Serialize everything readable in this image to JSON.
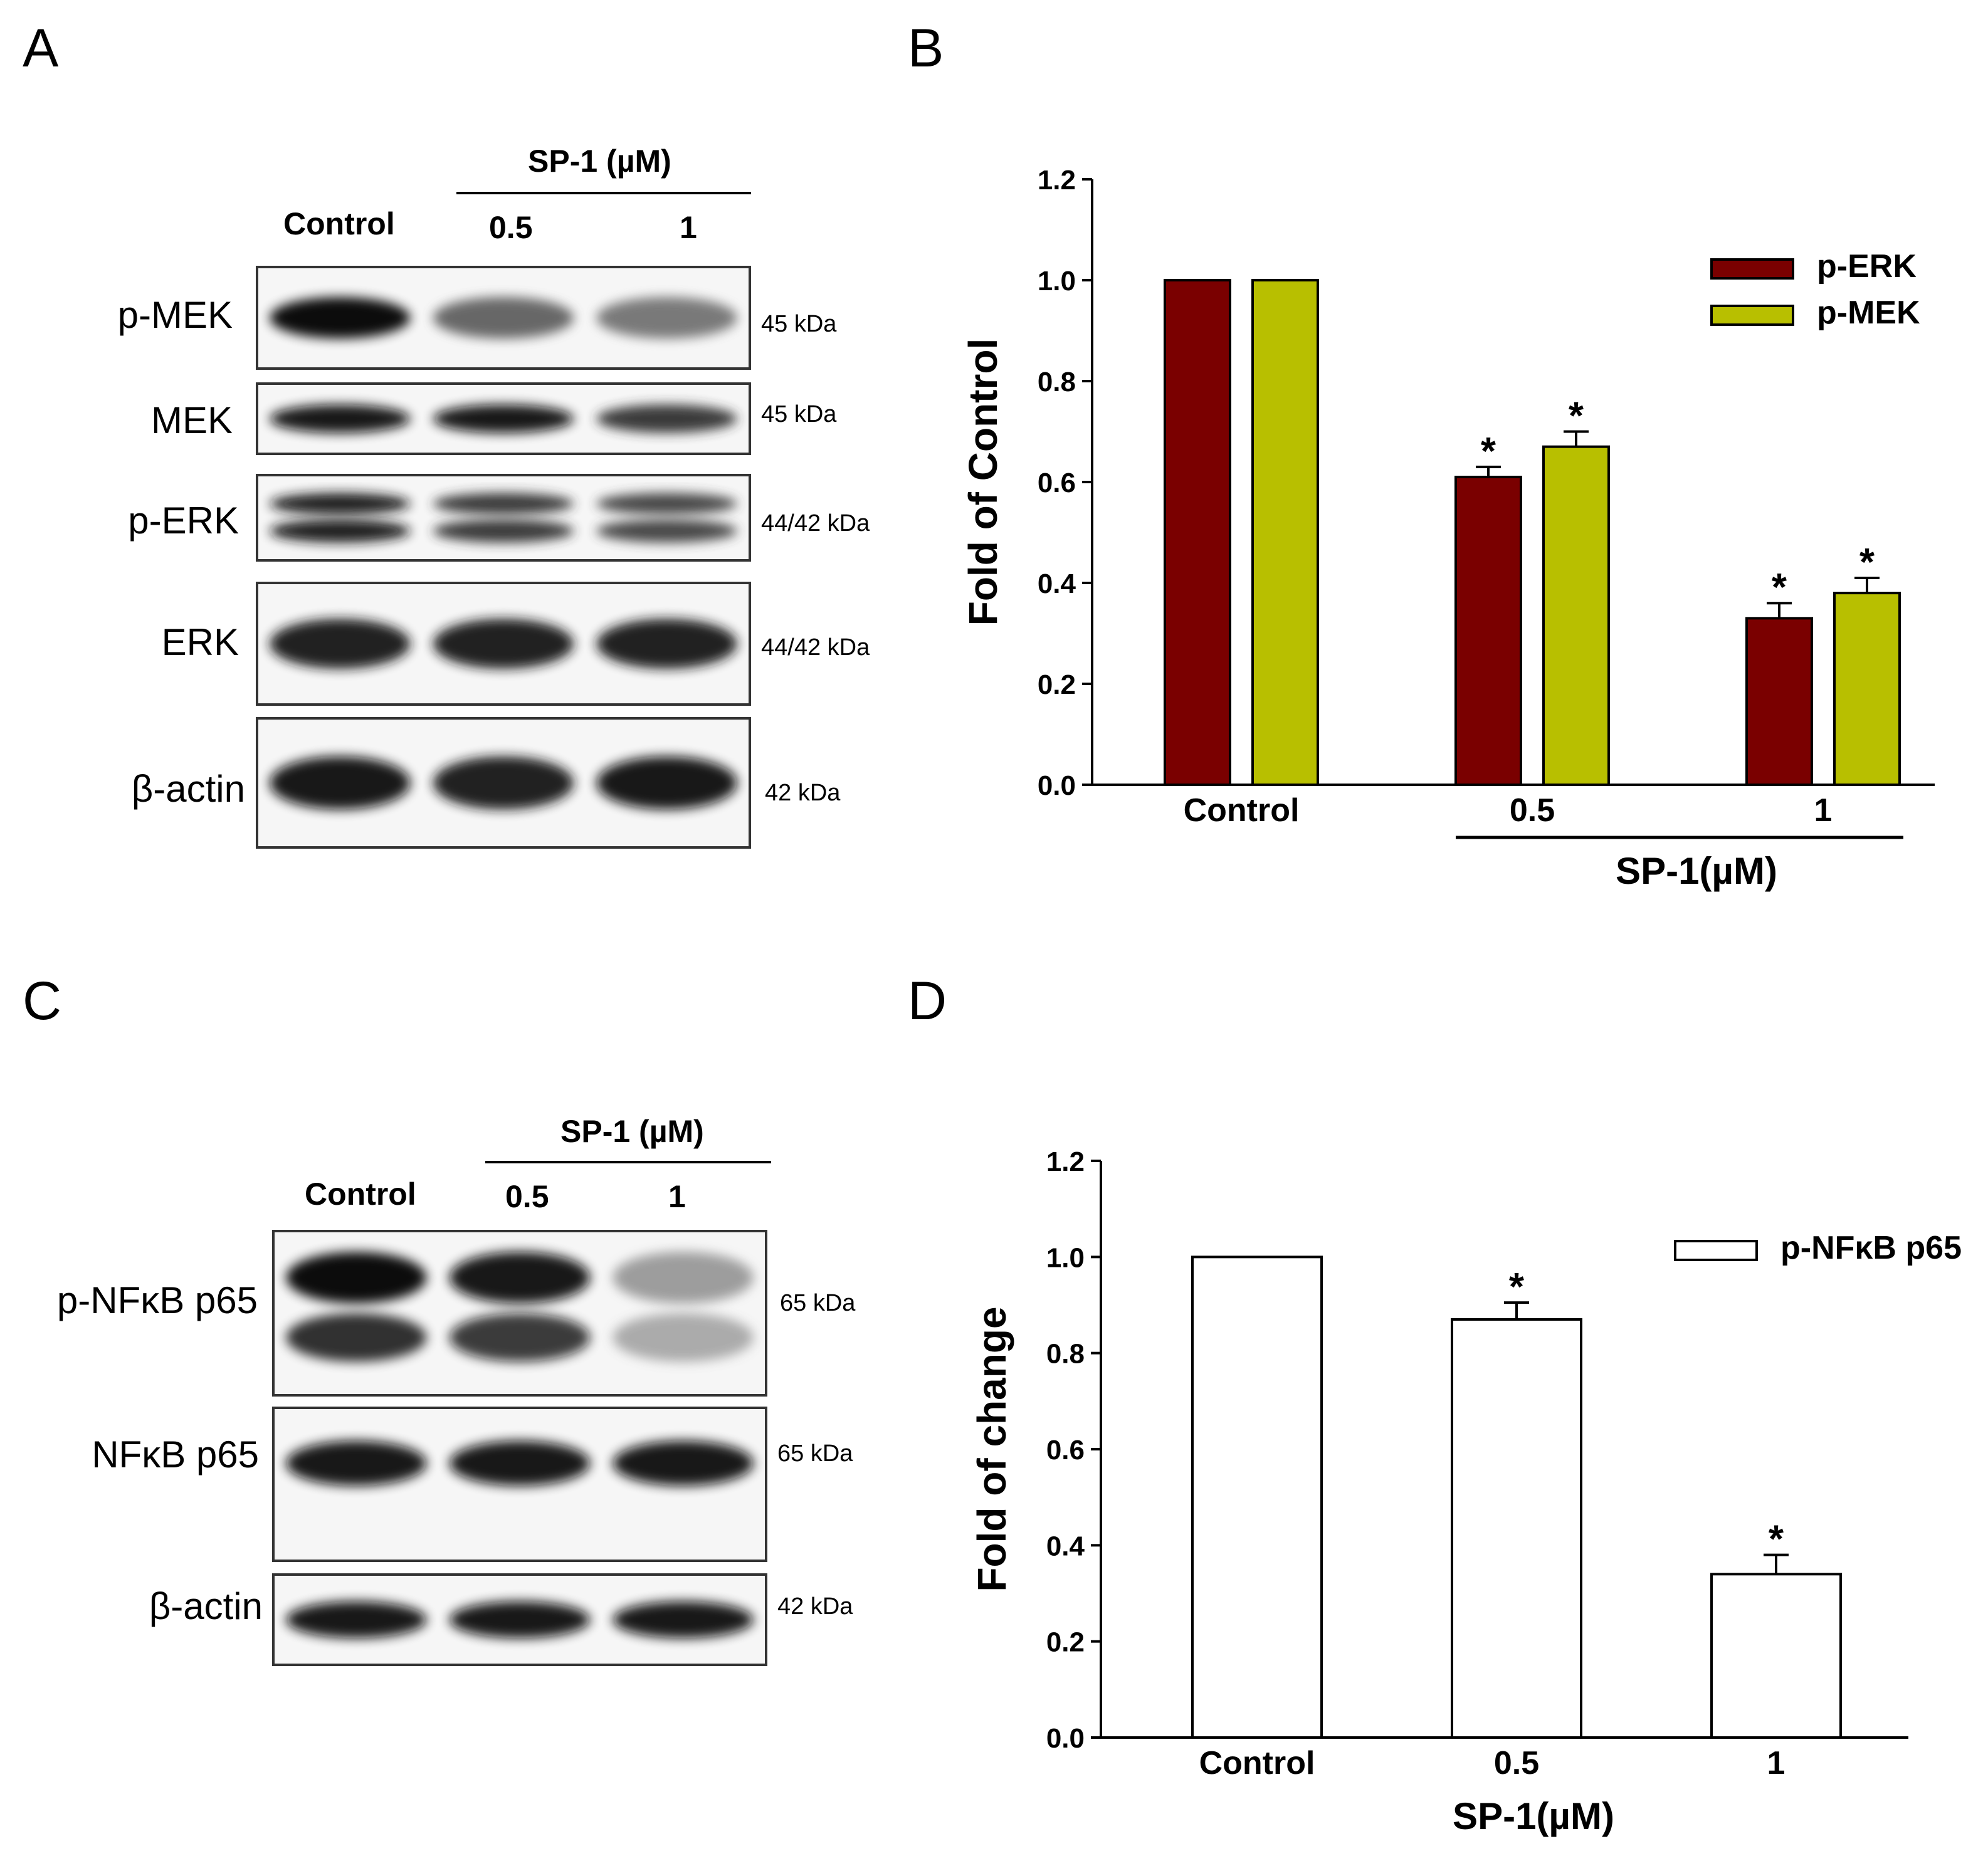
{
  "panels": {
    "a": {
      "letter": "A",
      "treatment_label": "SP-1 (µM)",
      "lanes": [
        "Control",
        "0.5",
        "1"
      ],
      "blots": [
        {
          "label": "p-MEK",
          "kda": "45 kDa",
          "intensity": [
            1.0,
            0.62,
            0.55
          ]
        },
        {
          "label": "MEK",
          "kda": "45 kDa",
          "intensity": [
            0.95,
            0.95,
            0.8
          ]
        },
        {
          "label": "p-ERK",
          "kda": "44/42 kDa",
          "intensity": [
            0.9,
            0.8,
            0.75
          ]
        },
        {
          "label": "ERK",
          "kda": "44/42 kDa",
          "intensity": [
            0.9,
            0.9,
            0.9
          ]
        },
        {
          "label": "β-actin",
          "kda": "42 kDa",
          "intensity": [
            0.95,
            0.9,
            0.95
          ]
        }
      ]
    },
    "b": {
      "letter": "B"
    },
    "c": {
      "letter": "C",
      "treatment_label": "SP-1 (µM)",
      "lanes": [
        "Control",
        "0.5",
        "1"
      ],
      "blots": [
        {
          "label": "p-NFκB p65",
          "kda": "65 kDa",
          "intensity": [
            1.0,
            0.95,
            0.4
          ]
        },
        {
          "label": "NFκB p65",
          "kda": "65 kDa",
          "intensity": [
            0.95,
            0.95,
            0.95
          ]
        },
        {
          "label": "β-actin",
          "kda": "42 kDa",
          "intensity": [
            0.97,
            0.97,
            0.97
          ]
        }
      ]
    },
    "d": {
      "letter": "D"
    }
  },
  "chart_data": [
    {
      "type": "bar",
      "panel": "B",
      "categories": [
        "Control",
        "0.5",
        "1"
      ],
      "group_label": "SP-1(µM)",
      "ylabel": "Fold of Control",
      "ylim": [
        0,
        1.2
      ],
      "yticks": [
        "0.0",
        "0.2",
        "0.4",
        "0.6",
        "0.8",
        "1.0",
        "1.2"
      ],
      "legend_position": "top-right",
      "series": [
        {
          "name": "p-ERK",
          "color": "#7a0000",
          "values": [
            1.0,
            0.61,
            0.33
          ],
          "errors": [
            0,
            0.02,
            0.03
          ],
          "significance": [
            "",
            "*",
            "*"
          ]
        },
        {
          "name": "p-MEK",
          "color": "#b8bf00",
          "values": [
            1.0,
            0.67,
            0.38
          ],
          "errors": [
            0,
            0.03,
            0.03
          ],
          "significance": [
            "",
            "*",
            "*"
          ]
        }
      ]
    },
    {
      "type": "bar",
      "panel": "D",
      "categories": [
        "Control",
        "0.5",
        "1"
      ],
      "xlabel": "SP-1(µM)",
      "ylabel": "Fold of change",
      "ylim": [
        0,
        1.2
      ],
      "yticks": [
        "0.0",
        "0.2",
        "0.4",
        "0.6",
        "0.8",
        "1.0",
        "1.2"
      ],
      "legend_position": "top-right",
      "series": [
        {
          "name": "p-NFκB p65",
          "color": "#ffffff",
          "values": [
            1.0,
            0.87,
            0.34
          ],
          "errors": [
            0,
            0.035,
            0.04
          ],
          "significance": [
            "",
            "*",
            "*"
          ]
        }
      ]
    }
  ]
}
